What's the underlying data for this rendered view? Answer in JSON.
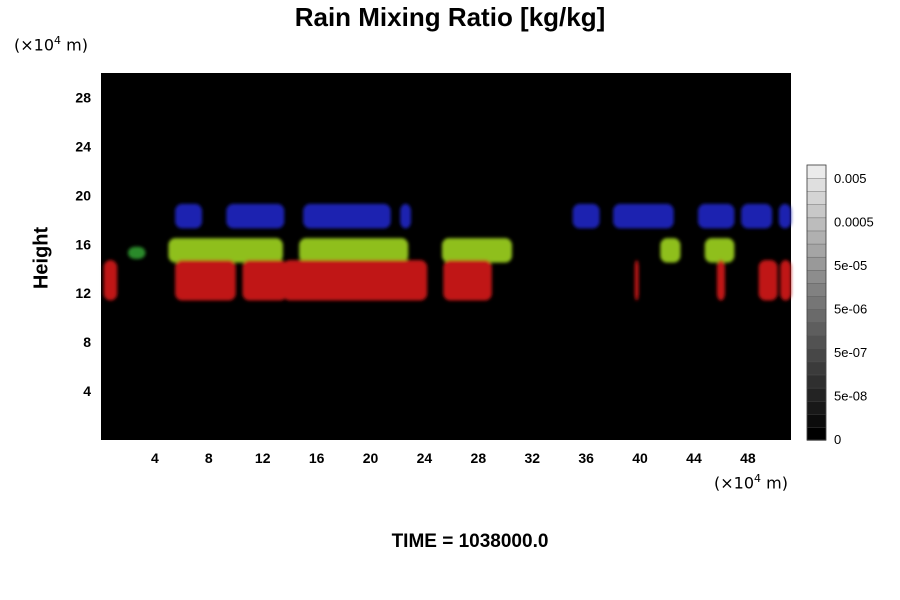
{
  "chart_data": {
    "type": "heatmap",
    "title": "Rain Mixing Ratio [kg/kg]",
    "ylabel": "Height",
    "xlabel": "",
    "x_unit": {
      "prefix": "(×10",
      "exp": "4",
      "suffix": " m)"
    },
    "y_unit": {
      "prefix": "(×10",
      "exp": "4",
      "suffix": " m)"
    },
    "x_ticks": [
      4,
      8,
      12,
      16,
      20,
      24,
      28,
      32,
      36,
      40,
      44,
      48
    ],
    "y_ticks": [
      4,
      8,
      12,
      16,
      20,
      24,
      28
    ],
    "xlim": [
      0,
      51.2
    ],
    "ylim": [
      0,
      30
    ],
    "background_color": "#000000",
    "colorbar": {
      "labels": [
        "0.005",
        "0.0005",
        "5e-05",
        "5e-06",
        "5e-07",
        "5e-08",
        "0"
      ],
      "levels": 21
    },
    "features": [
      {
        "color": "#1a22b0",
        "y_range": [
          17.3,
          19.3
        ],
        "x_segments": [
          [
            5.5,
            7.5
          ],
          [
            9.3,
            13.6
          ],
          [
            15.0,
            21.5
          ],
          [
            22.2,
            23.0
          ],
          [
            35.0,
            37.0
          ],
          [
            38.0,
            42.5
          ],
          [
            44.3,
            47.0
          ],
          [
            47.5,
            49.8
          ],
          [
            50.3,
            51.2
          ]
        ]
      },
      {
        "color": "#8fbf1c",
        "y_range": [
          14.5,
          16.5
        ],
        "x_segments": [
          [
            5.0,
            13.5
          ],
          [
            14.7,
            22.8
          ],
          [
            25.3,
            30.5
          ],
          [
            41.5,
            43.0
          ],
          [
            44.8,
            47.0
          ]
        ]
      },
      {
        "color": "#2a8a2a",
        "y_range": [
          14.8,
          15.8
        ],
        "x_segments": [
          [
            2.0,
            3.3
          ]
        ]
      },
      {
        "color": "#c01818",
        "y_range": [
          11.4,
          14.7
        ],
        "x_segments": [
          [
            0.2,
            1.2
          ],
          [
            5.5,
            10.0
          ],
          [
            10.5,
            13.8
          ],
          [
            13.5,
            24.2
          ],
          [
            25.4,
            29.0
          ],
          [
            39.6,
            39.9
          ],
          [
            45.7,
            46.3
          ],
          [
            48.8,
            50.2
          ],
          [
            50.4,
            51.2
          ]
        ]
      }
    ],
    "time_label": "TIME = 1038000.0"
  }
}
